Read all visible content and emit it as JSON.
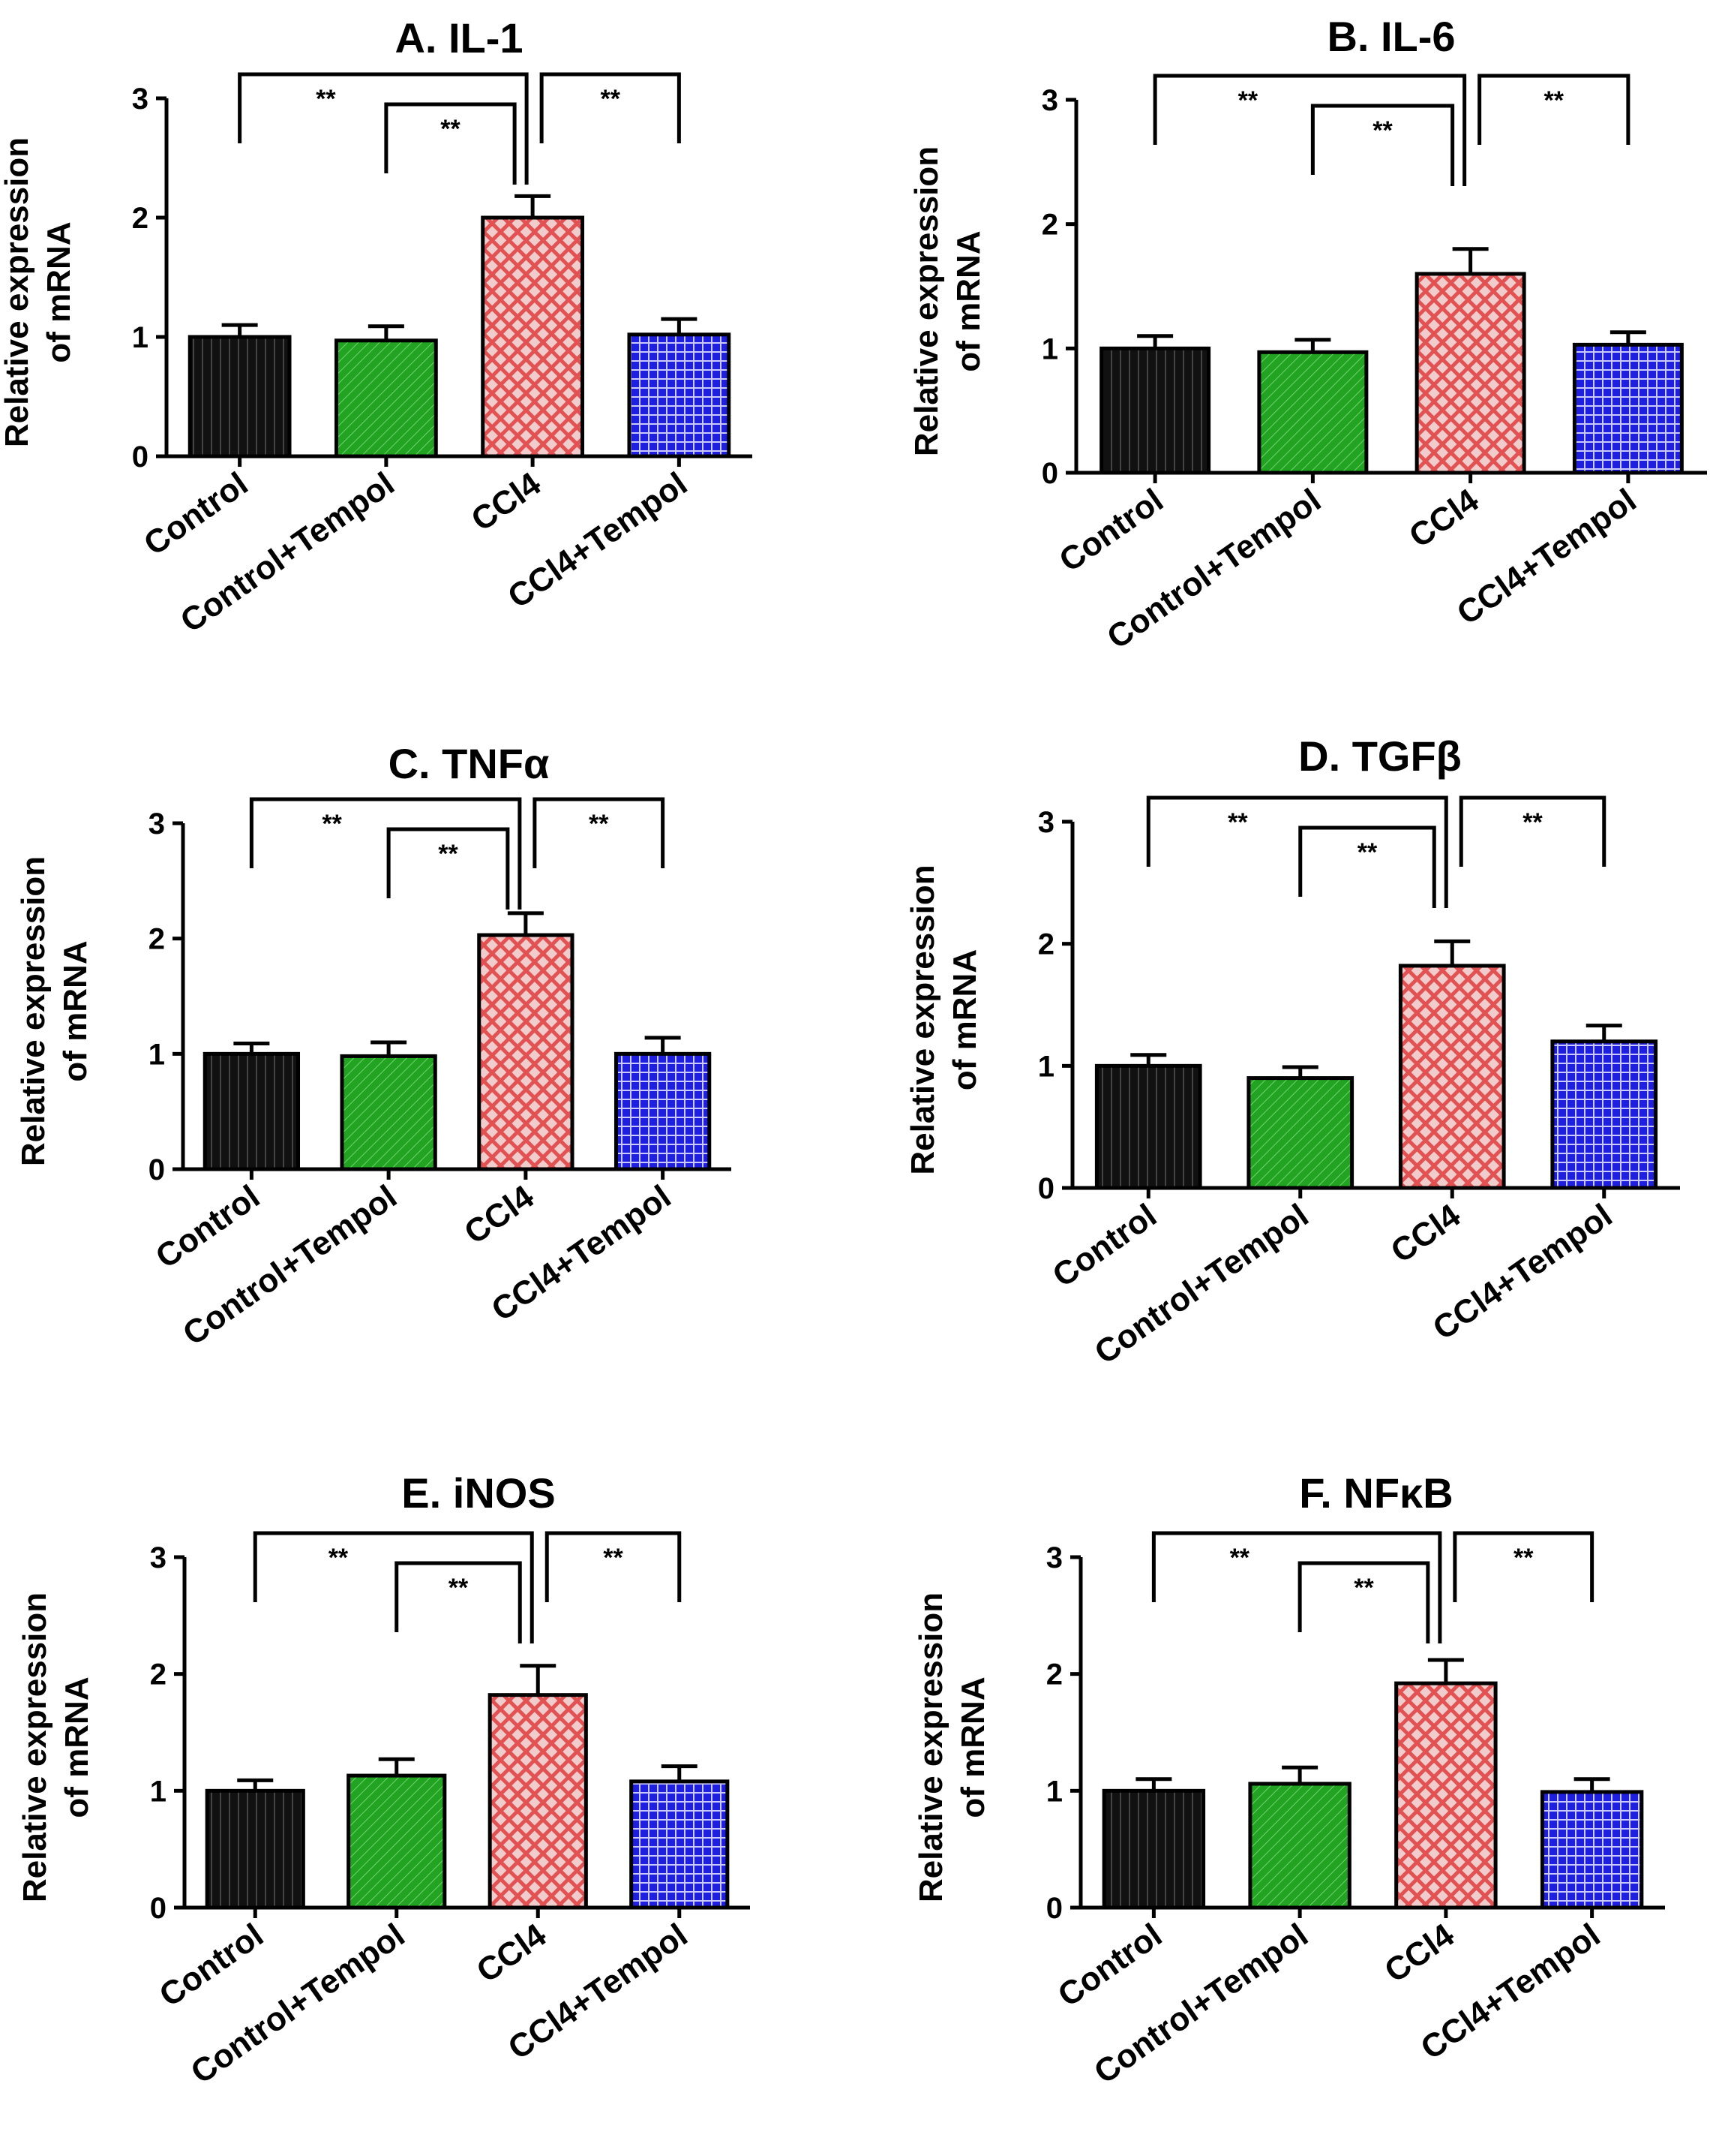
{
  "figure": {
    "categories": [
      "Control",
      "Control+Tempol",
      "CCl4",
      "CCl4+Tempol"
    ],
    "ylabel_line1": "Relative expression",
    "ylabel_line2": "of mRNA",
    "colors": {
      "control": "#111111",
      "control_tempol": "#22a322",
      "ccl4": "#e35252",
      "ccl4_tempol": "#1f1fe0",
      "axis": "#000000"
    }
  },
  "chart_data": [
    {
      "type": "bar",
      "title": "A. IL-1",
      "ylabel": "Relative expression of mRNA",
      "categories": [
        "Control",
        "Control+Tempol",
        "CCl4",
        "CCl4+Tempol"
      ],
      "values": [
        1.0,
        0.97,
        2.0,
        1.02
      ],
      "errors": [
        0.1,
        0.12,
        0.18,
        0.13
      ],
      "ylim": [
        0,
        3
      ],
      "yticks": [
        "0",
        "1",
        "2",
        "3"
      ],
      "significance": [
        {
          "from": 0,
          "to": 2,
          "label": "**"
        },
        {
          "from": 1,
          "to": 2,
          "label": "**"
        },
        {
          "from": 2,
          "to": 3,
          "label": "**"
        }
      ]
    },
    {
      "type": "bar",
      "title": "B. IL-6",
      "ylabel": "Relative expression of mRNA",
      "categories": [
        "Control",
        "Control+Tempol",
        "CCl4",
        "CCl4+Tempol"
      ],
      "values": [
        1.0,
        0.97,
        1.6,
        1.03
      ],
      "errors": [
        0.1,
        0.1,
        0.2,
        0.1
      ],
      "ylim": [
        0,
        3
      ],
      "yticks": [
        "0",
        "1",
        "2",
        "3"
      ],
      "significance": [
        {
          "from": 0,
          "to": 2,
          "label": "**"
        },
        {
          "from": 1,
          "to": 2,
          "label": "**"
        },
        {
          "from": 2,
          "to": 3,
          "label": "**"
        }
      ]
    },
    {
      "type": "bar",
      "title": "C. TNFα",
      "ylabel": "Relative expression of mRNA",
      "categories": [
        "Control",
        "Control+Tempol",
        "CCl4",
        "CCl4+Tempol"
      ],
      "values": [
        1.0,
        0.98,
        2.03,
        1.0
      ],
      "errors": [
        0.09,
        0.12,
        0.19,
        0.14
      ],
      "ylim": [
        0,
        3
      ],
      "yticks": [
        "0",
        "1",
        "2",
        "3"
      ],
      "significance": [
        {
          "from": 0,
          "to": 2,
          "label": "**"
        },
        {
          "from": 1,
          "to": 2,
          "label": "**"
        },
        {
          "from": 2,
          "to": 3,
          "label": "**"
        }
      ]
    },
    {
      "type": "bar",
      "title": "D. TGFβ",
      "ylabel": "Relative expression of mRNA",
      "categories": [
        "Control",
        "Control+Tempol",
        "CCl4",
        "CCl4+Tempol"
      ],
      "values": [
        1.0,
        0.9,
        1.82,
        1.2
      ],
      "errors": [
        0.09,
        0.09,
        0.2,
        0.13
      ],
      "ylim": [
        0,
        3
      ],
      "yticks": [
        "0",
        "1",
        "2",
        "3"
      ],
      "significance": [
        {
          "from": 0,
          "to": 2,
          "label": "**"
        },
        {
          "from": 1,
          "to": 2,
          "label": "**"
        },
        {
          "from": 2,
          "to": 3,
          "label": "**"
        }
      ]
    },
    {
      "type": "bar",
      "title": "E. iNOS",
      "ylabel": "Relative expression of mRNA",
      "categories": [
        "Control",
        "Control+Tempol",
        "CCl4",
        "CCl4+Tempol"
      ],
      "values": [
        1.0,
        1.13,
        1.82,
        1.08
      ],
      "errors": [
        0.09,
        0.14,
        0.25,
        0.13
      ],
      "ylim": [
        0,
        3
      ],
      "yticks": [
        "0",
        "1",
        "2",
        "3"
      ],
      "significance": [
        {
          "from": 0,
          "to": 2,
          "label": "**"
        },
        {
          "from": 1,
          "to": 2,
          "label": "**"
        },
        {
          "from": 2,
          "to": 3,
          "label": "**"
        }
      ]
    },
    {
      "type": "bar",
      "title": "F. NFκB",
      "ylabel": "Relative expression of mRNA",
      "categories": [
        "Control",
        "Control+Tempol",
        "CCl4",
        "CCl4+Tempol"
      ],
      "values": [
        1.0,
        1.06,
        1.92,
        0.99
      ],
      "errors": [
        0.1,
        0.14,
        0.2,
        0.11
      ],
      "ylim": [
        0,
        3
      ],
      "yticks": [
        "0",
        "1",
        "2",
        "3"
      ],
      "significance": [
        {
          "from": 0,
          "to": 2,
          "label": "**"
        },
        {
          "from": 1,
          "to": 2,
          "label": "**"
        },
        {
          "from": 2,
          "to": 3,
          "label": "**"
        }
      ]
    }
  ]
}
